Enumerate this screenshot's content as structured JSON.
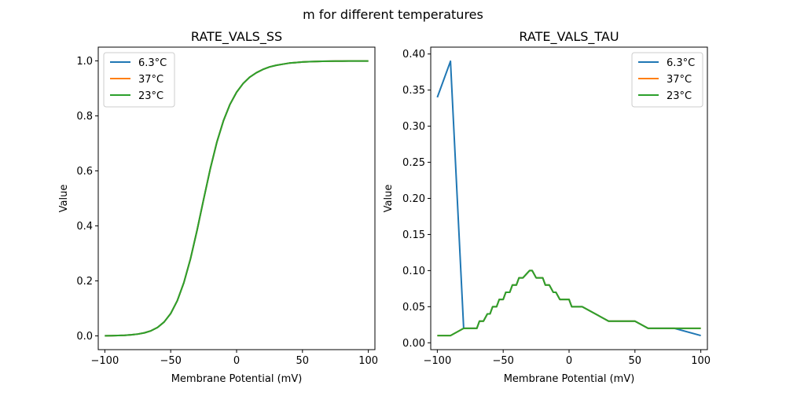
{
  "figure": {
    "suptitle": "m for different temperatures"
  },
  "chart_data": [
    {
      "type": "line",
      "title": "RATE_VALS_SS",
      "xlabel": "Membrane Potential (mV)",
      "ylabel": "Value",
      "xlim": [
        -105,
        105
      ],
      "ylim": [
        -0.05,
        1.05
      ],
      "xticks": [
        -100,
        -50,
        0,
        50,
        100
      ],
      "xtick_labels": [
        "−100",
        "−50",
        "0",
        "50",
        "100"
      ],
      "yticks": [
        0.0,
        0.2,
        0.4,
        0.6,
        0.8,
        1.0
      ],
      "ytick_labels": [
        "0.0",
        "0.2",
        "0.4",
        "0.6",
        "0.8",
        "1.0"
      ],
      "legend_position": "upper-left",
      "x": [
        -100,
        -95,
        -90,
        -85,
        -80,
        -75,
        -70,
        -65,
        -60,
        -55,
        -50,
        -45,
        -40,
        -35,
        -30,
        -25,
        -20,
        -15,
        -10,
        -5,
        0,
        5,
        10,
        15,
        20,
        25,
        30,
        35,
        40,
        45,
        50,
        55,
        60,
        65,
        70,
        75,
        80,
        85,
        90,
        95,
        100
      ],
      "series": [
        {
          "name": "6.3°C",
          "color": "#1f77b4",
          "values": [
            0.0005,
            0.0008,
            0.0014,
            0.0023,
            0.0039,
            0.0066,
            0.0111,
            0.0185,
            0.0308,
            0.0505,
            0.0815,
            0.128,
            0.194,
            0.28,
            0.384,
            0.497,
            0.607,
            0.704,
            0.782,
            0.842,
            0.886,
            0.918,
            0.941,
            0.957,
            0.969,
            0.978,
            0.984,
            0.988,
            0.992,
            0.994,
            0.996,
            0.997,
            0.998,
            0.9985,
            0.9989,
            0.9992,
            0.9994,
            0.9996,
            0.9997,
            0.9998,
            0.9998
          ]
        },
        {
          "name": "37°C",
          "color": "#ff7f0e",
          "values": [
            0.0005,
            0.0008,
            0.0014,
            0.0023,
            0.0039,
            0.0066,
            0.0111,
            0.0185,
            0.0308,
            0.0505,
            0.0815,
            0.128,
            0.194,
            0.28,
            0.384,
            0.497,
            0.607,
            0.704,
            0.782,
            0.842,
            0.886,
            0.918,
            0.941,
            0.957,
            0.969,
            0.978,
            0.984,
            0.988,
            0.992,
            0.994,
            0.996,
            0.997,
            0.998,
            0.9985,
            0.9989,
            0.9992,
            0.9994,
            0.9996,
            0.9997,
            0.9998,
            0.9998
          ]
        },
        {
          "name": "23°C",
          "color": "#2ca02c",
          "values": [
            0.0005,
            0.0008,
            0.0014,
            0.0023,
            0.0039,
            0.0066,
            0.0111,
            0.0185,
            0.0308,
            0.0505,
            0.0815,
            0.128,
            0.194,
            0.28,
            0.384,
            0.497,
            0.607,
            0.704,
            0.782,
            0.842,
            0.886,
            0.918,
            0.941,
            0.957,
            0.969,
            0.978,
            0.984,
            0.988,
            0.992,
            0.994,
            0.996,
            0.997,
            0.998,
            0.9985,
            0.9989,
            0.9992,
            0.9994,
            0.9996,
            0.9997,
            0.9998,
            0.9998
          ]
        }
      ]
    },
    {
      "type": "line",
      "title": "RATE_VALS_TAU",
      "xlabel": "Membrane Potential (mV)",
      "ylabel": "Value",
      "xlim": [
        -105,
        105
      ],
      "ylim": [
        -0.0095,
        0.4095
      ],
      "xticks": [
        -100,
        -50,
        0,
        50,
        100
      ],
      "xtick_labels": [
        "−100",
        "−50",
        "0",
        "50",
        "100"
      ],
      "yticks": [
        0.0,
        0.05,
        0.1,
        0.15,
        0.2,
        0.25,
        0.3,
        0.35,
        0.4
      ],
      "ytick_labels": [
        "0.00",
        "0.05",
        "0.10",
        "0.15",
        "0.20",
        "0.25",
        "0.30",
        "0.35",
        "0.40"
      ],
      "legend_position": "upper-right",
      "series": [
        {
          "name": "6.3°C",
          "color": "#1f77b4",
          "x": [
            -100,
            -90,
            -80,
            -75,
            -70,
            -68,
            -65,
            -62,
            -60,
            -58,
            -55,
            -53,
            -50,
            -48,
            -45,
            -43,
            -40,
            -38,
            -35,
            -30,
            -28,
            -25,
            -20,
            -18,
            -15,
            -12,
            -10,
            -7,
            -5,
            0,
            2,
            8,
            10,
            30,
            50,
            60,
            80,
            100
          ],
          "values": [
            0.34,
            0.39,
            0.02,
            0.02,
            0.02,
            0.03,
            0.03,
            0.04,
            0.04,
            0.05,
            0.05,
            0.06,
            0.06,
            0.07,
            0.07,
            0.08,
            0.08,
            0.09,
            0.09,
            0.1,
            0.1,
            0.09,
            0.09,
            0.08,
            0.08,
            0.07,
            0.07,
            0.06,
            0.06,
            0.06,
            0.05,
            0.05,
            0.05,
            0.03,
            0.03,
            0.02,
            0.02,
            0.01
          ]
        },
        {
          "name": "37°C",
          "color": "#ff7f0e",
          "x": [
            -100,
            -90,
            -80,
            -75,
            -70,
            -68,
            -65,
            -62,
            -60,
            -58,
            -55,
            -53,
            -50,
            -48,
            -45,
            -43,
            -40,
            -38,
            -35,
            -30,
            -28,
            -25,
            -20,
            -18,
            -15,
            -12,
            -10,
            -7,
            -5,
            0,
            2,
            8,
            10,
            30,
            50,
            60,
            80,
            100
          ],
          "values": [
            0.01,
            0.01,
            0.02,
            0.02,
            0.02,
            0.03,
            0.03,
            0.04,
            0.04,
            0.05,
            0.05,
            0.06,
            0.06,
            0.07,
            0.07,
            0.08,
            0.08,
            0.09,
            0.09,
            0.1,
            0.1,
            0.09,
            0.09,
            0.08,
            0.08,
            0.07,
            0.07,
            0.06,
            0.06,
            0.06,
            0.05,
            0.05,
            0.05,
            0.03,
            0.03,
            0.02,
            0.02,
            0.02
          ]
        },
        {
          "name": "23°C",
          "color": "#2ca02c",
          "x": [
            -100,
            -90,
            -80,
            -75,
            -70,
            -68,
            -65,
            -62,
            -60,
            -58,
            -55,
            -53,
            -50,
            -48,
            -45,
            -43,
            -40,
            -38,
            -35,
            -30,
            -28,
            -25,
            -20,
            -18,
            -15,
            -12,
            -10,
            -7,
            -5,
            0,
            2,
            8,
            10,
            30,
            50,
            60,
            80,
            100
          ],
          "values": [
            0.01,
            0.01,
            0.02,
            0.02,
            0.02,
            0.03,
            0.03,
            0.04,
            0.04,
            0.05,
            0.05,
            0.06,
            0.06,
            0.07,
            0.07,
            0.08,
            0.08,
            0.09,
            0.09,
            0.1,
            0.1,
            0.09,
            0.09,
            0.08,
            0.08,
            0.07,
            0.07,
            0.06,
            0.06,
            0.06,
            0.05,
            0.05,
            0.05,
            0.03,
            0.03,
            0.02,
            0.02,
            0.02
          ]
        }
      ]
    }
  ]
}
